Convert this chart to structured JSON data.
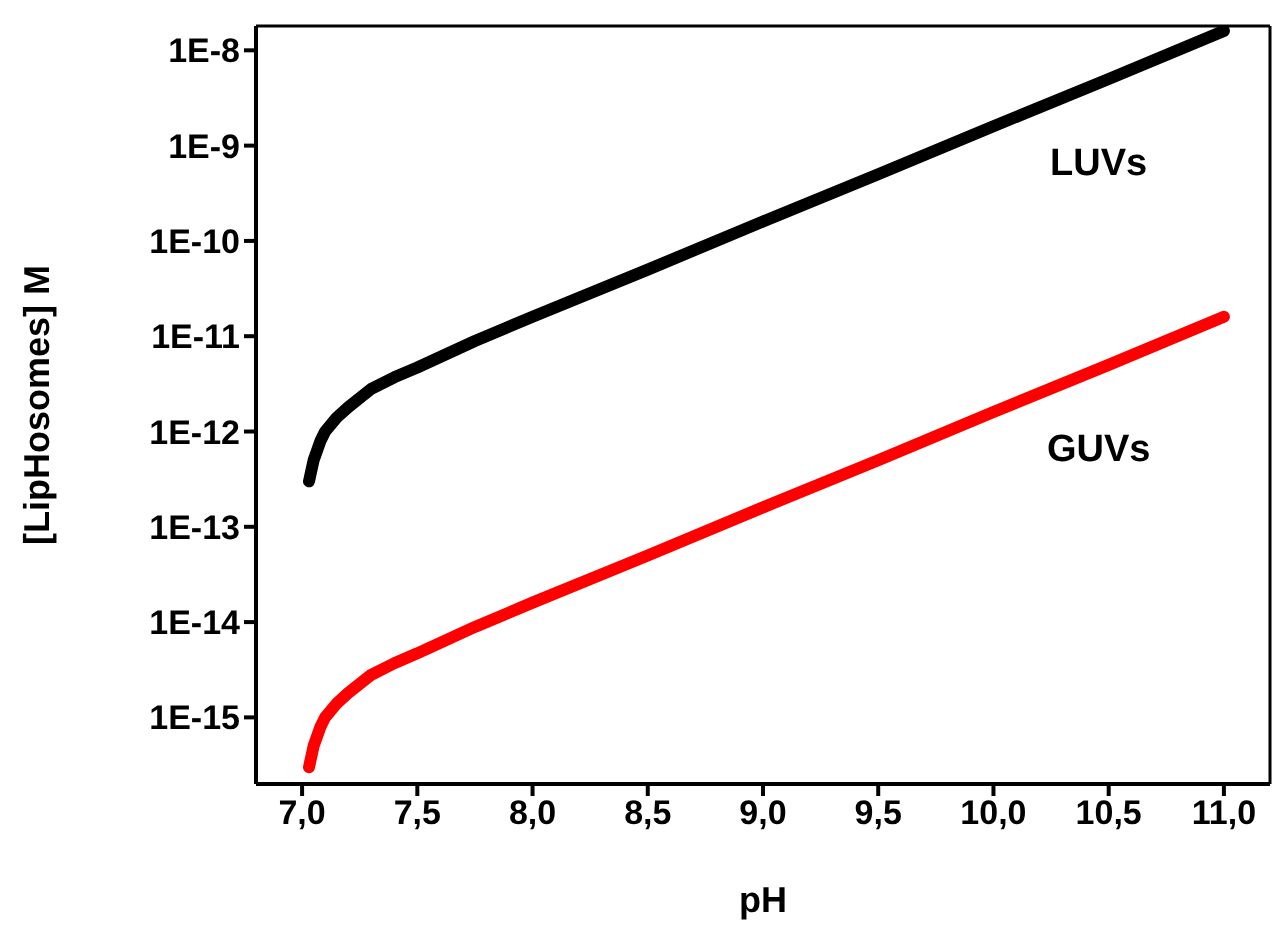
{
  "chart_data": {
    "type": "line",
    "xlabel": "pH",
    "ylabel": "[LipHosomes] M",
    "log": "y",
    "marker": "none",
    "line_style": "solid",
    "xlim": [
      6.8,
      11.2
    ],
    "xticks": [
      {
        "value": 7,
        "label": "7,0"
      },
      {
        "value": 7.5,
        "label": "7,5"
      },
      {
        "value": 8,
        "label": "8,0"
      },
      {
        "value": 8.5,
        "label": "8,5"
      },
      {
        "value": 9,
        "label": "9,0"
      },
      {
        "value": 9.5,
        "label": "9,5"
      },
      {
        "value": 10,
        "label": "10,0"
      },
      {
        "value": 10.5,
        "label": "10,5"
      },
      {
        "value": 11,
        "label": "11,0"
      }
    ],
    "ylim": [
      2e-16,
      1.8e-08
    ],
    "yticks": [
      {
        "value": 1e-15,
        "label": "1E-15"
      },
      {
        "value": 1e-14,
        "label": "1E-14"
      },
      {
        "value": 1e-13,
        "label": "1E-13"
      },
      {
        "value": 1e-12,
        "label": "1E-12"
      },
      {
        "value": 1e-11,
        "label": "1E-11"
      },
      {
        "value": 1e-10,
        "label": "1E-10"
      },
      {
        "value": 1e-09,
        "label": "1E-9"
      },
      {
        "value": 1e-08,
        "label": "1E-8"
      }
    ],
    "series": [
      {
        "name": "LUVs",
        "color": "#000000",
        "x": [
          7.03,
          7.05,
          7.08,
          7.1,
          7.15,
          7.2,
          7.3,
          7.4,
          7.5,
          7.75,
          8.0,
          8.5,
          9.0,
          9.5,
          10.0,
          10.5,
          11.0
        ],
        "values": [
          3e-13,
          5e-13,
          8e-13,
          1e-12,
          1.4e-12,
          1.8e-12,
          2.8e-12,
          3.7e-12,
          4.7e-12,
          8.9e-12,
          1.6e-11,
          5e-11,
          1.6e-10,
          5e-10,
          1.6e-09,
          5e-09,
          1.6e-08
        ]
      },
      {
        "name": "GUVs",
        "color": "#ff0000",
        "x": [
          7.03,
          7.05,
          7.08,
          7.1,
          7.15,
          7.2,
          7.3,
          7.4,
          7.5,
          7.75,
          8.0,
          8.5,
          9.0,
          9.5,
          10.0,
          10.5,
          11.0
        ],
        "values": [
          3e-16,
          5e-16,
          8e-16,
          1e-15,
          1.4e-15,
          1.8e-15,
          2.8e-15,
          3.7e-15,
          4.7e-15,
          8.9e-15,
          1.6e-14,
          5e-14,
          1.6e-13,
          5e-13,
          1.6e-12,
          5e-12,
          1.6e-11
        ]
      }
    ]
  }
}
